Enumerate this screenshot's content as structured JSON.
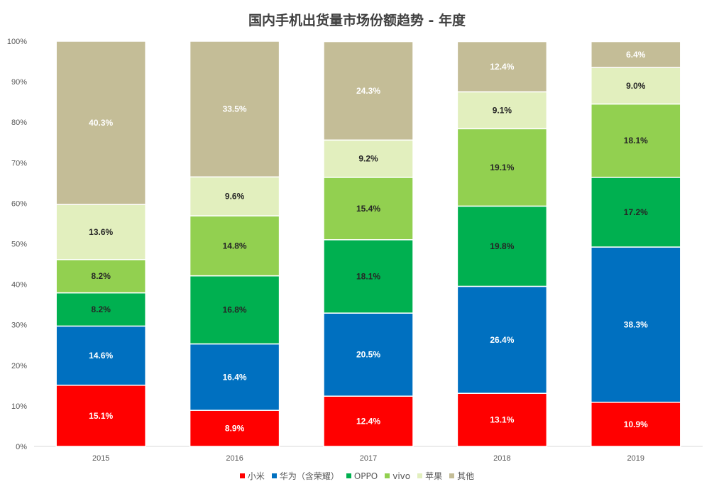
{
  "chart_data": {
    "type": "bar",
    "stacked": true,
    "title": "国内手机出货量市场份额趋势 - 年度",
    "categories": [
      "2015",
      "2016",
      "2017",
      "2018",
      "2019"
    ],
    "ylim": [
      0,
      100
    ],
    "y_ticks": [
      "0%",
      "10%",
      "20%",
      "30%",
      "40%",
      "50%",
      "60%",
      "70%",
      "80%",
      "90%",
      "100%"
    ],
    "grid": false,
    "legend_position": "bottom",
    "series": [
      {
        "name": "小米",
        "color": "#ff0000",
        "label_color": "#ffffff",
        "values": [
          15.1,
          8.9,
          12.4,
          13.1,
          10.9
        ],
        "labels": [
          "15.1%",
          "8.9%",
          "12.4%",
          "13.1%",
          "10.9%"
        ]
      },
      {
        "name": "华为（含荣耀）",
        "color": "#0070c0",
        "label_color": "#ffffff",
        "values": [
          14.6,
          16.4,
          20.5,
          26.4,
          38.3
        ],
        "labels": [
          "14.6%",
          "16.4%",
          "20.5%",
          "26.4%",
          "38.3%"
        ]
      },
      {
        "name": "OPPO",
        "color": "#00b050",
        "label_color": "#262626",
        "values": [
          8.2,
          16.8,
          18.1,
          19.8,
          17.2
        ],
        "labels": [
          "8.2%",
          "16.8%",
          "18.1%",
          "19.8%",
          "17.2%"
        ]
      },
      {
        "name": "vivo",
        "color": "#92d050",
        "label_color": "#262626",
        "values": [
          8.2,
          14.8,
          15.4,
          19.1,
          18.1
        ],
        "labels": [
          "8.2%",
          "14.8%",
          "15.4%",
          "19.1%",
          "18.1%"
        ]
      },
      {
        "name": "苹果",
        "color": "#e2efbe",
        "label_color": "#262626",
        "values": [
          13.6,
          9.6,
          9.2,
          9.1,
          9.0
        ],
        "labels": [
          "13.6%",
          "9.6%",
          "9.2%",
          "9.1%",
          "9.0%"
        ]
      },
      {
        "name": "其他",
        "color": "#c4bd97",
        "label_color": "#ffffff",
        "values": [
          40.3,
          33.5,
          24.3,
          12.4,
          6.4
        ],
        "labels": [
          "40.3%",
          "33.5%",
          "24.3%",
          "12.4%",
          "6.4%"
        ]
      }
    ]
  }
}
